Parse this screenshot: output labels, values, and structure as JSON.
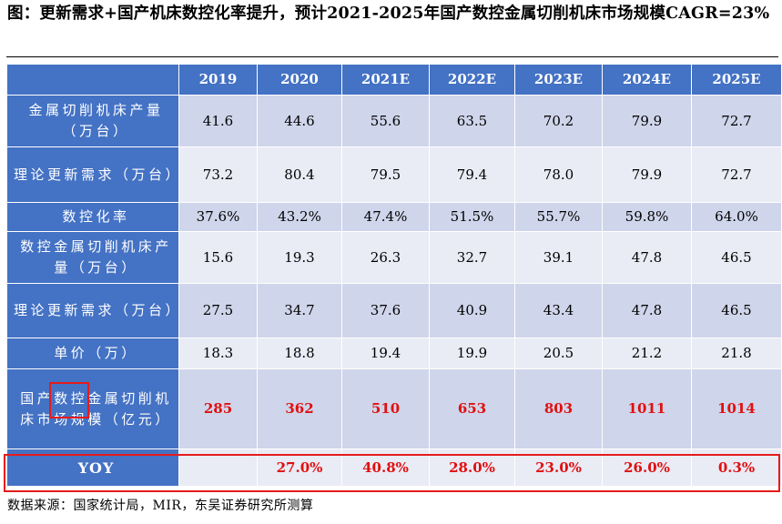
{
  "title": "图：更新需求+国产机床数控化率提升，预计2021-2025年国产数控金属切削机床市场规模CAGR=23%",
  "table": {
    "columns": [
      "2019",
      "2020",
      "2021E",
      "2022E",
      "2023E",
      "2024E",
      "2025E"
    ],
    "rows": [
      {
        "label": "金属切削机床产量（万台）",
        "values": [
          "41.6",
          "44.6",
          "55.6",
          "63.5",
          "70.2",
          "79.9",
          "72.7"
        ]
      },
      {
        "label": "理论更新需求（万台）",
        "values": [
          "73.2",
          "80.4",
          "79.5",
          "79.4",
          "78.0",
          "79.9",
          "72.7"
        ]
      },
      {
        "label": "数控化率",
        "values": [
          "37.6%",
          "43.2%",
          "47.4%",
          "51.5%",
          "55.7%",
          "59.8%",
          "64.0%"
        ]
      },
      {
        "label": "数控金属切削机床产量（万台）",
        "values": [
          "15.6",
          "19.3",
          "26.3",
          "32.7",
          "39.1",
          "47.8",
          "46.5"
        ]
      },
      {
        "label": "理论更新需求（万台）",
        "values": [
          "27.5",
          "34.7",
          "37.6",
          "40.9",
          "43.4",
          "47.8",
          "46.5"
        ]
      },
      {
        "label": "单价（万）",
        "values": [
          "18.3",
          "18.8",
          "19.4",
          "19.9",
          "20.5",
          "21.2",
          "21.8"
        ]
      },
      {
        "label": "国产数控金属切削机床市场规模（亿元）",
        "values": [
          "285",
          "362",
          "510",
          "653",
          "803",
          "1011",
          "1014"
        ]
      },
      {
        "label": "YOY",
        "values": [
          "",
          "27.0%",
          "40.8%",
          "28.0%",
          "23.0%",
          "26.0%",
          "0.3%"
        ]
      }
    ]
  },
  "source": "数据来源：国家统计局，MIR，东吴证券研究所测算",
  "colors": {
    "header_bg": "#4472c4",
    "row_odd": "#cfd5ea",
    "row_even": "#e9ebf5",
    "highlight_red": "#e01010",
    "box_red": "#e51b1b"
  }
}
